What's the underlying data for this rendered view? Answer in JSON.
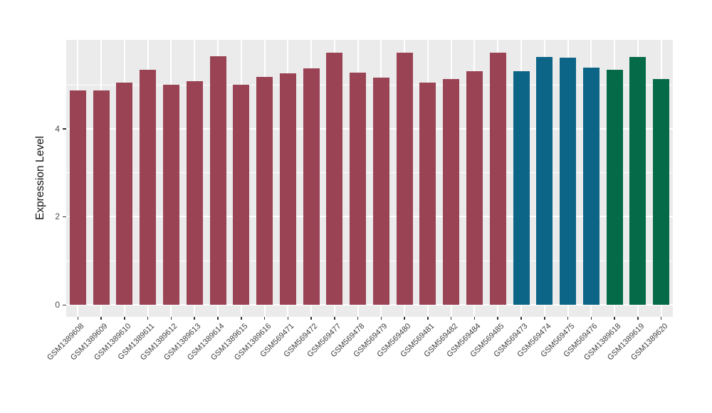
{
  "chart_data": {
    "type": "bar",
    "title": "",
    "xlabel": "",
    "ylabel": "Expression Level",
    "ylim": [
      0,
      6.02
    ],
    "yticks": [
      0,
      2,
      4
    ],
    "yticks_minor": [
      1,
      3,
      5
    ],
    "grid": "on",
    "legend": "none",
    "panel_bg": "#EBEBEB",
    "grid_color": "#FFFFFF",
    "categories": [
      "GSM1389608",
      "GSM1389609",
      "GSM1389610",
      "GSM1389611",
      "GSM1389612",
      "GSM1389613",
      "GSM1389614",
      "GSM1389615",
      "GSM1389616",
      "GSM569471",
      "GSM569472",
      "GSM569477",
      "GSM569478",
      "GSM569479",
      "GSM569480",
      "GSM569481",
      "GSM569482",
      "GSM569484",
      "GSM569485",
      "GSM569473",
      "GSM569474",
      "GSM569475",
      "GSM569476",
      "GSM1389618",
      "GSM1389619",
      "GSM1389620"
    ],
    "values": [
      4.86,
      4.86,
      5.05,
      5.33,
      4.99,
      5.07,
      5.65,
      5.0,
      5.18,
      5.25,
      5.36,
      5.72,
      5.27,
      5.16,
      5.72,
      5.04,
      5.13,
      5.31,
      5.73,
      5.3,
      5.63,
      5.61,
      5.38,
      5.34,
      5.62,
      5.13
    ],
    "bar_groups": [
      "group1",
      "group1",
      "group1",
      "group1",
      "group1",
      "group1",
      "group1",
      "group1",
      "group1",
      "group1",
      "group1",
      "group1",
      "group1",
      "group1",
      "group1",
      "group1",
      "group1",
      "group1",
      "group1",
      "group2",
      "group2",
      "group2",
      "group2",
      "group3",
      "group3",
      "group3"
    ],
    "group_colors": {
      "group1": "#9A4355",
      "group2": "#0C6587",
      "group3": "#046A47"
    }
  }
}
